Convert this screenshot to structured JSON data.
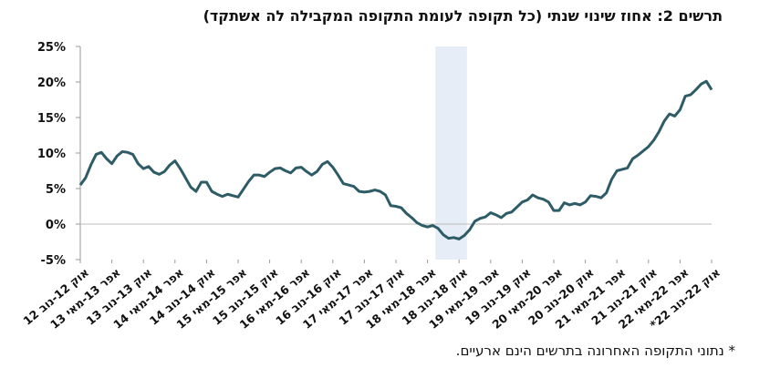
{
  "chart_data": {
    "type": "line",
    "title": "תרשים 2: אחוז שינוי שנתי (כל תקופה לעומת התקופה המקבילה לה אשתקד)",
    "note": "* נתוני התקופה האחרונה בתרשים הינם ארעיים.",
    "color": "#2e5c66",
    "shaded_band": {
      "from_index": 67,
      "to_index": 73,
      "color": "#e6edf7"
    },
    "ylim": [
      -5,
      25
    ],
    "yticks": [
      {
        "value": -5,
        "label": "-5%"
      },
      {
        "value": 0,
        "label": "0%"
      },
      {
        "value": 5,
        "label": "5%"
      },
      {
        "value": 10,
        "label": "10%"
      },
      {
        "value": 15,
        "label": "15%"
      },
      {
        "value": 20,
        "label": "20%"
      },
      {
        "value": 25,
        "label": "25%"
      }
    ],
    "categories": [
      "אוק 12-נוב 12",
      null,
      null,
      null,
      null,
      null,
      "אפר 13-מאי 13",
      null,
      null,
      null,
      null,
      null,
      "אוק 13-נוב 13",
      null,
      null,
      null,
      null,
      null,
      "אפר 14-מאי 14",
      null,
      null,
      null,
      null,
      null,
      "אוק 14-נוב 14",
      null,
      null,
      null,
      null,
      null,
      "אפר 15-מאי 15",
      null,
      null,
      null,
      null,
      null,
      "אוק 15-נוב 15",
      null,
      null,
      null,
      null,
      null,
      "אפר 16-מאי 16",
      null,
      null,
      null,
      null,
      null,
      "אוק 16-נוב 16",
      null,
      null,
      null,
      null,
      null,
      "אפר 17-מאי 17",
      null,
      null,
      null,
      null,
      null,
      "אוק 17-נוב 17",
      null,
      null,
      null,
      null,
      null,
      "אפר 18-מאי 18",
      null,
      null,
      null,
      null,
      null,
      "אוק 18-נוב 18",
      null,
      null,
      null,
      null,
      null,
      "אפר 19-מאי 19",
      null,
      null,
      null,
      null,
      null,
      "אוק 19-נוב 19",
      null,
      null,
      null,
      null,
      null,
      "אפר 20-מאי 20",
      null,
      null,
      null,
      null,
      null,
      "אוק 20-נוב 20",
      null,
      null,
      null,
      null,
      null,
      "אפר 21-מאי 21",
      null,
      null,
      null,
      null,
      null,
      "אוק 21-נוב 21",
      null,
      null,
      null,
      null,
      null,
      "אפר 22-מאי 22",
      null,
      null,
      null,
      null,
      null,
      "אוק 22-נוב 22*"
    ],
    "values": [
      5.5,
      6.5,
      8.3,
      9.8,
      10.1,
      9.2,
      8.5,
      9.6,
      10.2,
      10.1,
      9.8,
      8.5,
      7.8,
      8.1,
      7.3,
      7.0,
      7.4,
      8.3,
      8.9,
      7.8,
      6.5,
      5.2,
      4.6,
      5.9,
      5.9,
      4.6,
      4.2,
      3.9,
      4.2,
      4.0,
      3.8,
      4.9,
      6.0,
      6.9,
      6.9,
      6.7,
      7.3,
      7.8,
      7.9,
      7.5,
      7.2,
      7.9,
      8.0,
      7.4,
      6.9,
      7.4,
      8.4,
      8.8,
      8.0,
      6.9,
      5.7,
      5.5,
      5.3,
      4.6,
      4.5,
      4.6,
      4.8,
      4.6,
      4.1,
      2.6,
      2.5,
      2.3,
      1.5,
      0.9,
      0.2,
      -0.2,
      -0.4,
      -0.2,
      -0.6,
      -1.5,
      -2.0,
      -1.9,
      -2.1,
      -1.6,
      -0.8,
      0.4,
      0.8,
      1.0,
      1.6,
      1.3,
      0.9,
      1.5,
      1.7,
      2.4,
      3.1,
      3.4,
      4.1,
      3.7,
      3.5,
      3.1,
      1.9,
      1.9,
      3.0,
      2.7,
      2.9,
      2.7,
      3.1,
      4.0,
      3.9,
      3.7,
      4.4,
      6.3,
      7.5,
      7.7,
      7.9,
      9.2,
      9.7,
      10.3,
      10.9,
      11.8,
      13.0,
      14.5,
      15.5,
      15.2,
      16.1,
      18.0,
      18.2,
      18.9,
      19.7,
      20.1,
      18.9
    ]
  }
}
